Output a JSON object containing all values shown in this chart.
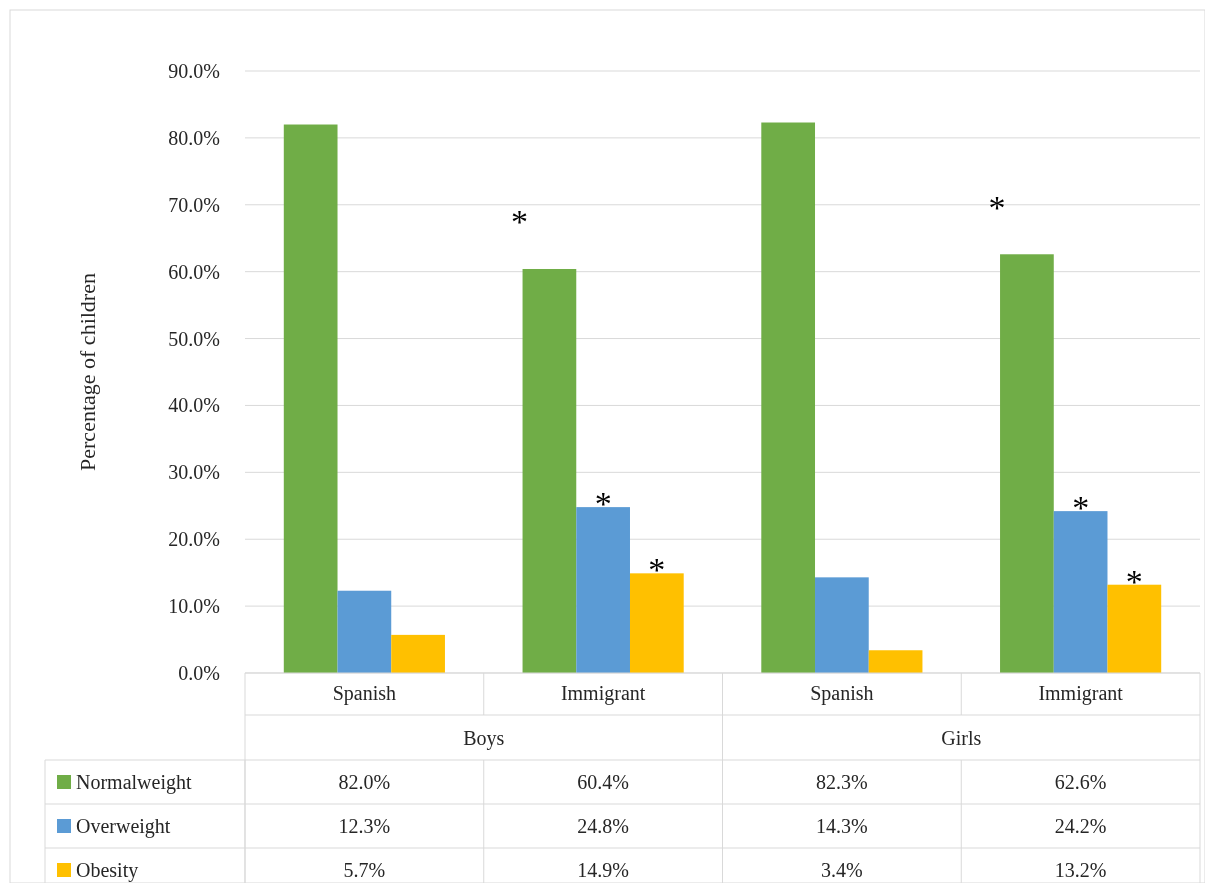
{
  "chart_data": {
    "type": "bar",
    "ylabel": "Percentage of children",
    "categories": [
      "Spanish",
      "Immigrant",
      "Spanish",
      "Immigrant"
    ],
    "series": [
      {
        "name": "Normalweight",
        "color": "#70ad47",
        "values": [
          82.0,
          60.4,
          82.3,
          62.6
        ]
      },
      {
        "name": "Overweight",
        "color": "#5b9bd5",
        "values": [
          12.3,
          24.8,
          14.3,
          24.2
        ]
      },
      {
        "name": "Obesity",
        "color": "#ffc000",
        "values": [
          5.7,
          14.9,
          3.4,
          13.2
        ]
      }
    ],
    "value_labels": [
      [
        "82.0%",
        "60.4%",
        "82.3%",
        "62.6%"
      ],
      [
        "12.3%",
        "24.8%",
        "14.3%",
        "24.2%"
      ],
      [
        "5.7%",
        "14.9%",
        "3.4%",
        "13.2%"
      ]
    ],
    "ylim": [
      0,
      90
    ],
    "yticks": [
      {
        "value": 0,
        "label": "0.0%"
      },
      {
        "value": 10,
        "label": "10.0%"
      },
      {
        "value": 20,
        "label": "20.0%"
      },
      {
        "value": 30,
        "label": "30.0%"
      },
      {
        "value": 40,
        "label": "40.0%"
      },
      {
        "value": 50,
        "label": "50.0%"
      },
      {
        "value": 60,
        "label": "60.0%"
      },
      {
        "value": 70,
        "label": "70.0%"
      },
      {
        "value": 80,
        "label": "80.0%"
      },
      {
        "value": 90,
        "label": "90.0%"
      }
    ],
    "grid": "y",
    "legend": "bottom",
    "annotations": [
      "Boys",
      "Girls",
      "*",
      "*",
      "*",
      "*",
      "*",
      "*"
    ]
  }
}
